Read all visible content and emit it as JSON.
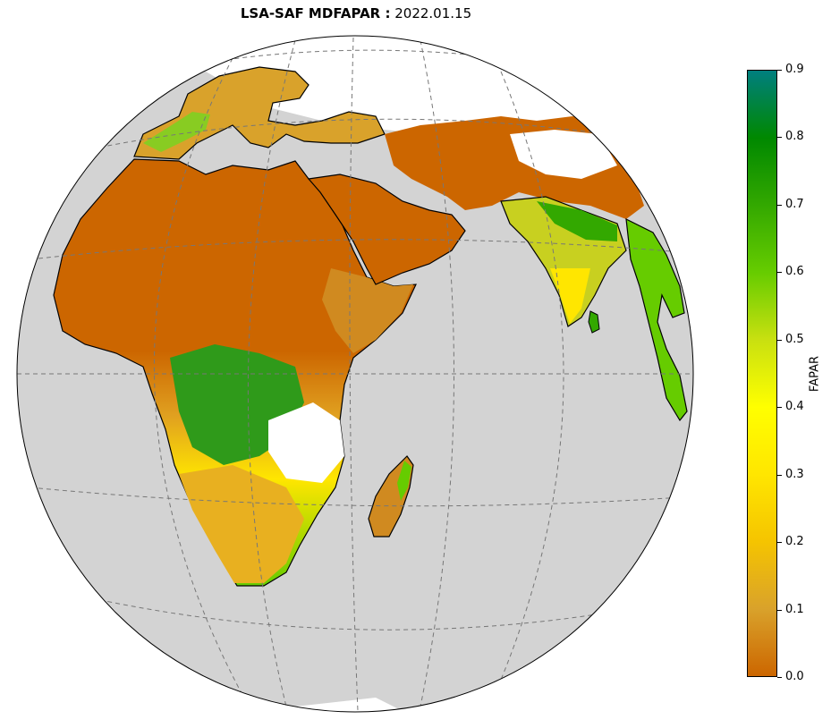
{
  "title": {
    "product": "LSA-SAF MDFAPAR :",
    "date": "2022.01.15"
  },
  "colorbar": {
    "label": "FAPAR",
    "ticks": [
      "0.0",
      "0.1",
      "0.2",
      "0.3",
      "0.4",
      "0.5",
      "0.6",
      "0.7",
      "0.8",
      "0.9"
    ],
    "min": 0.0,
    "max": 0.9,
    "gradient": [
      "#cc6600",
      "#d9a22b",
      "#f5c400",
      "#ffe600",
      "#ffff00",
      "#c8e010",
      "#66cc00",
      "#33a800",
      "#008800",
      "#007f7f"
    ]
  },
  "map": {
    "projection": "orthographic",
    "ocean_color": "#d3d3d3",
    "coastline_color": "#000000",
    "gridline_color": "#777777",
    "no_data_color": "#ffffff",
    "regions": [
      "Africa",
      "Arabian Peninsula",
      "Madagascar",
      "India",
      "Sri Lanka",
      "Europe",
      "Central Asia",
      "Southeast Asia"
    ]
  }
}
